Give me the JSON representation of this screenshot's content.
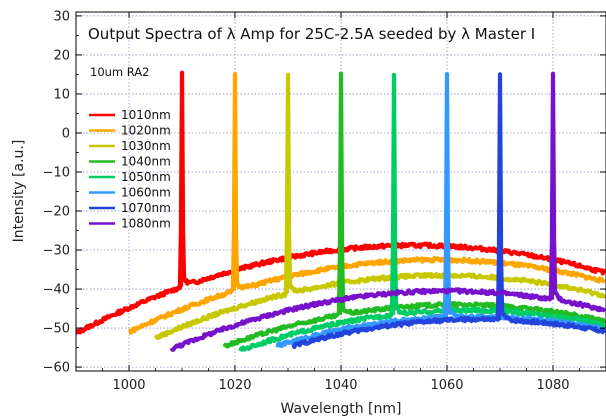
{
  "chart_data": {
    "type": "line",
    "title": "Output Spectra of λ Amp for 25C-2.5A seeded by λ Master I",
    "annotation": "10um RA2",
    "xlabel": "Wavelength [nm]",
    "ylabel": "Intensity [a.u.]",
    "xlim": [
      990,
      1090
    ],
    "ylim": [
      -61,
      31
    ],
    "xticks": [
      1000,
      1020,
      1040,
      1060,
      1080
    ],
    "yticks": [
      -60,
      -50,
      -40,
      -30,
      -20,
      -10,
      0,
      10,
      20,
      30
    ],
    "grid": true,
    "legend_position": "left",
    "series": [
      {
        "name": "1010nm",
        "color": "#ff0000",
        "peak_x": 1010,
        "peak_y": 15,
        "base_center": 1054,
        "base_peak": -28.8,
        "x_start": 990
      },
      {
        "name": "1020nm",
        "color": "#ffa500",
        "peak_x": 1020,
        "peak_y": 15,
        "base_center": 1058,
        "base_peak": -32.5,
        "x_start": 1000
      },
      {
        "name": "1030nm",
        "color": "#c8c800",
        "peak_x": 1030,
        "peak_y": 15,
        "base_center": 1059,
        "base_peak": -36.5,
        "x_start": 1005
      },
      {
        "name": "1040nm",
        "color": "#22bb22",
        "peak_x": 1040,
        "peak_y": 15,
        "base_center": 1062,
        "base_peak": -44.0,
        "x_start": 1018
      },
      {
        "name": "1050nm",
        "color": "#00cc66",
        "peak_x": 1050,
        "peak_y": 15,
        "base_center": 1064,
        "base_peak": -45.5,
        "x_start": 1021
      },
      {
        "name": "1060nm",
        "color": "#3399ff",
        "peak_x": 1060,
        "peak_y": 15,
        "base_center": 1065,
        "base_peak": -47.0,
        "x_start": 1028
      },
      {
        "name": "1070nm",
        "color": "#2244dd",
        "peak_x": 1070,
        "peak_y": 15,
        "base_center": 1066,
        "base_peak": -47.8,
        "x_start": 1031
      },
      {
        "name": "1080nm",
        "color": "#7711cc",
        "peak_x": 1080,
        "peak_y": 15,
        "base_center": 1060,
        "base_peak": -40.5,
        "x_start": 1008
      }
    ]
  }
}
